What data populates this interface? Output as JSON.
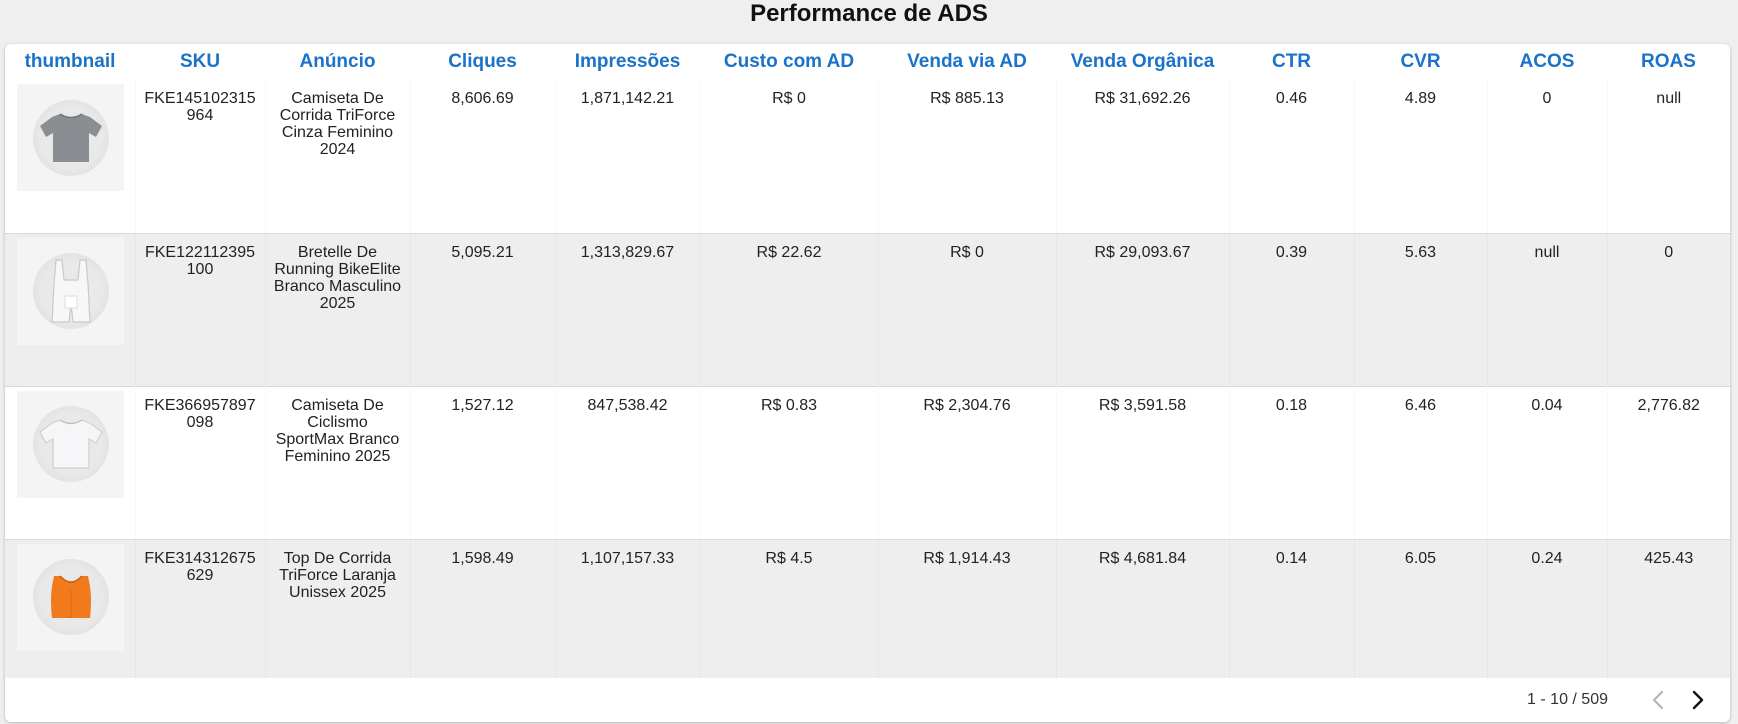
{
  "page": {
    "title": "Performance de ADS"
  },
  "table": {
    "columns": [
      "thumbnail",
      "SKU",
      "Anúncio",
      "Cliques",
      "Impressões",
      "Custo com AD",
      "Venda via AD",
      "Venda Orgânica",
      "CTR",
      "CVR",
      "ACOS",
      "ROAS"
    ],
    "rows": [
      {
        "thumbnail_icon": "gray-tshirt-icon",
        "thumb_color": "#8a8d92",
        "sku": "FKE145102315964",
        "anuncio": "Camiseta De Corrida TriForce Cinza Feminino 2024",
        "cliques": "8,606.69",
        "impressoes": "1,871,142.21",
        "custo": "R$ 0",
        "venda_ad": "R$ 885.13",
        "venda_org": "R$ 31,692.26",
        "ctr": "0.46",
        "cvr": "4.89",
        "acos": "0",
        "roas": "null"
      },
      {
        "thumbnail_icon": "white-bib-shorts-icon",
        "thumb_color": "#f2f2f2",
        "sku": "FKE122112395100",
        "anuncio": "Bretelle De Running BikeElite Branco Masculino 2025",
        "cliques": "5,095.21",
        "impressoes": "1,313,829.67",
        "custo": "R$ 22.62",
        "venda_ad": "R$ 0",
        "venda_org": "R$ 29,093.67",
        "ctr": "0.39",
        "cvr": "5.63",
        "acos": "null",
        "roas": "0"
      },
      {
        "thumbnail_icon": "white-tshirt-icon",
        "thumb_color": "#f4f4f6",
        "sku": "FKE366957897098",
        "anuncio": "Camiseta De Ciclismo SportMax Branco Feminino 2025",
        "cliques": "1,527.12",
        "impressoes": "847,538.42",
        "custo": "R$ 0.83",
        "venda_ad": "R$ 2,304.76",
        "venda_org": "R$ 3,591.58",
        "ctr": "0.18",
        "cvr": "6.46",
        "acos": "0.04",
        "roas": "2,776.82"
      },
      {
        "thumbnail_icon": "orange-top-icon",
        "thumb_color": "#f07a1c",
        "sku": "FKE314312675629",
        "anuncio": "Top De Corrida TriForce Laranja Unissex 2025",
        "cliques": "1,598.49",
        "impressoes": "1,107,157.33",
        "custo": "R$ 4.5",
        "venda_ad": "R$ 1,914.43",
        "venda_org": "R$ 4,681.84",
        "ctr": "0.14",
        "cvr": "6.05",
        "acos": "0.24",
        "roas": "425.43"
      }
    ]
  },
  "pagination": {
    "range": "1 - 10 / 509",
    "prev_icon": "chevron-left-icon",
    "next_icon": "chevron-right-icon"
  }
}
